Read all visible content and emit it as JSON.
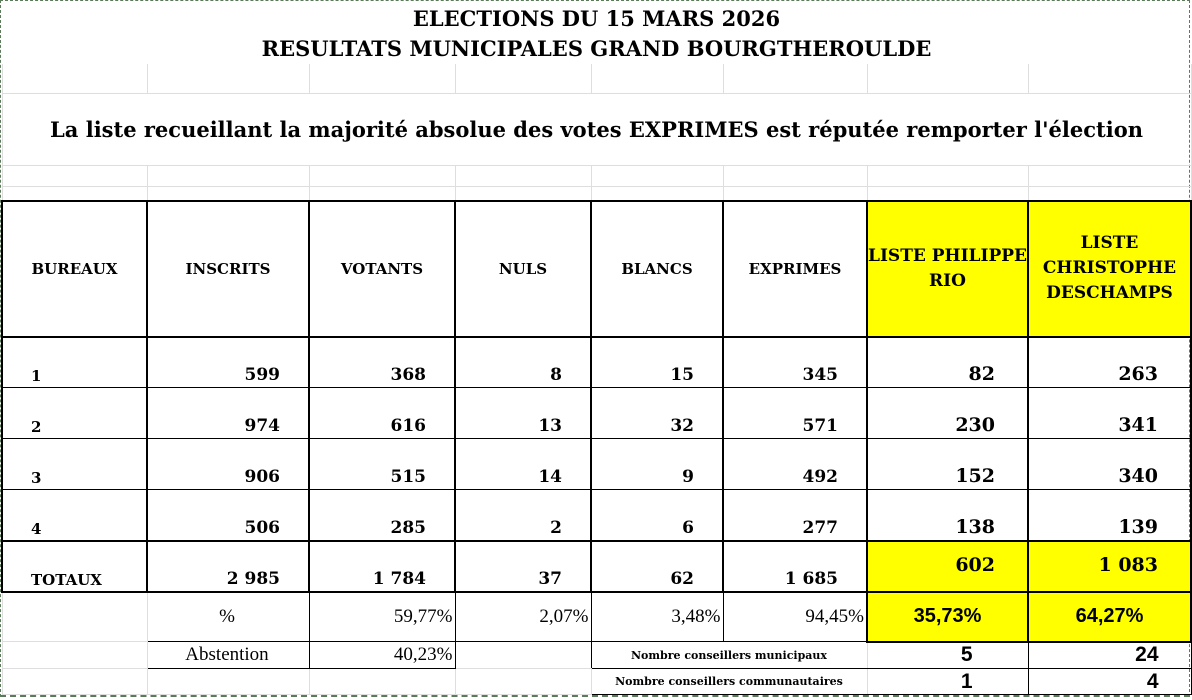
{
  "title_line1": "ELECTIONS DU 15 MARS 2026",
  "title_line2": "RESULTATS MUNICIPALES GRAND BOURGTHEROULDE",
  "message": "La liste recueillant la majorité absolue des votes EXPRIMES est réputée remporter l'élection",
  "headers": [
    "BUREAUX",
    "INSCRITS",
    "VOTANTS",
    "NULS",
    "BLANCS",
    "EXPRIMES",
    "LISTE PHILIPPE RIO",
    "LISTE CHRISTOPHE DESCHAMPS"
  ],
  "rows": [
    [
      "1",
      "599",
      "368",
      "8",
      "15",
      "345",
      "82",
      "263"
    ],
    [
      "2",
      "974",
      "616",
      "13",
      "32",
      "571",
      "230",
      "341"
    ],
    [
      "3",
      "906",
      "515",
      "14",
      "9",
      "492",
      "152",
      "340"
    ],
    [
      "4",
      "506",
      "285",
      "2",
      "6",
      "277",
      "138",
      "139"
    ]
  ],
  "totals": [
    "TOTAUX",
    "2 985",
    "1 784",
    "37",
    "62",
    "1 685",
    "602",
    "1 083"
  ],
  "percent_row": {
    "label": "%",
    "votants": "59,77%",
    "nuls": "2,07%",
    "blancs": "3,48%",
    "exprimes": "94,45%",
    "rio": "35,73%",
    "deschamps": "64,27%"
  },
  "abstention": {
    "label": "Abstention",
    "value": "40,23%"
  },
  "conseillers_municipaux": {
    "label": "Nombre conseillers municipaux",
    "rio": "5",
    "deschamps": "24"
  },
  "conseillers_communautaires": {
    "label": "Nombre conseillers communautaires",
    "rio": "1",
    "deschamps": "4"
  },
  "colors": {
    "highlight": "#ffff00"
  }
}
